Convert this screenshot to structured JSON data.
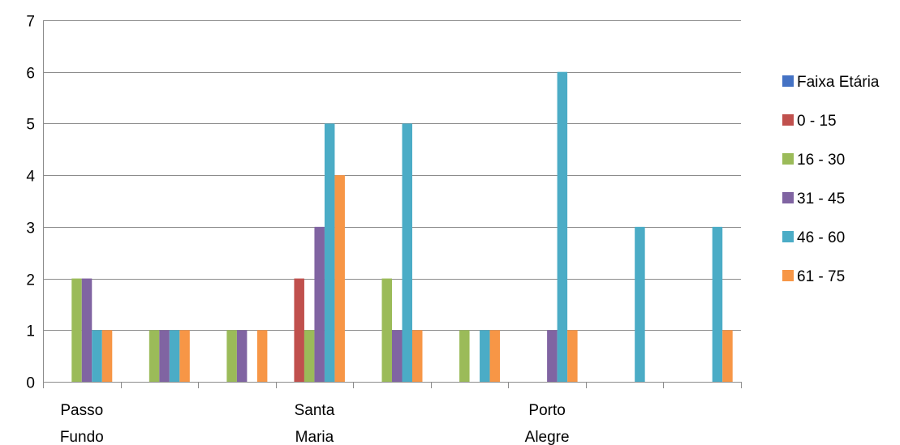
{
  "chart_data": {
    "type": "bar",
    "title": "",
    "xlabel": "",
    "ylabel": "",
    "ylim": [
      0,
      7
    ],
    "yticks": [
      0,
      1,
      2,
      3,
      4,
      5,
      6,
      7
    ],
    "grid": true,
    "legend_position": "right",
    "category_labels": [
      [
        "Passo",
        "Fundo"
      ],
      [],
      [],
      [
        "Santa",
        "Maria"
      ],
      [],
      [],
      [
        "Porto",
        "Alegre"
      ],
      [],
      []
    ],
    "series": [
      {
        "name": "Faixa Etária",
        "color": "#4472C4",
        "values": [
          0,
          0,
          0,
          0,
          0,
          0,
          0,
          0,
          0
        ]
      },
      {
        "name": "0 - 15",
        "color": "#C0504D",
        "values": [
          0,
          0,
          0,
          2,
          0,
          0,
          0,
          0,
          0
        ]
      },
      {
        "name": "16 - 30",
        "color": "#9BBB59",
        "values": [
          2,
          1,
          1,
          1,
          2,
          1,
          0,
          0,
          0
        ]
      },
      {
        "name": "31 - 45",
        "color": "#8064A2",
        "values": [
          2,
          1,
          1,
          3,
          1,
          0,
          1,
          0,
          0
        ]
      },
      {
        "name": "46 - 60",
        "color": "#4BACC6",
        "values": [
          1,
          1,
          0,
          5,
          5,
          1,
          6,
          3,
          3
        ]
      },
      {
        "name": "61 - 75",
        "color": "#F79646",
        "values": [
          1,
          1,
          1,
          4,
          1,
          1,
          1,
          0,
          1
        ]
      }
    ]
  }
}
